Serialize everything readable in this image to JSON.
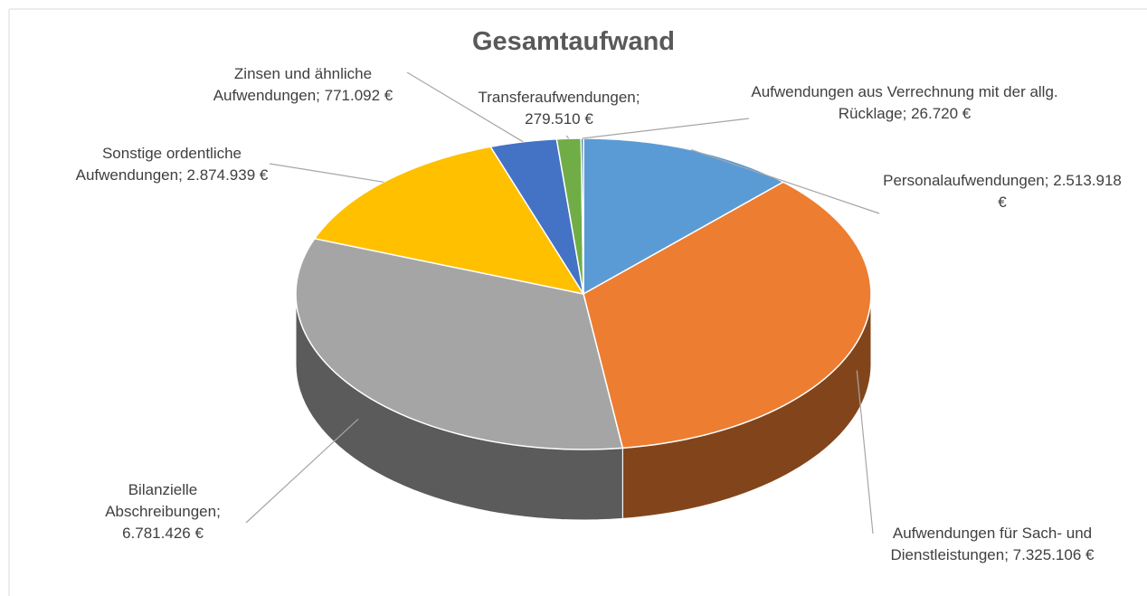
{
  "chart_data": {
    "type": "pie3d",
    "title": "Gesamtaufwand",
    "categories": [
      "Personalaufwendungen",
      "Aufwendungen für Sach- und Dienstleistungen",
      "Bilanzielle Abschreibungen",
      "Sonstige ordentliche Aufwendungen",
      "Zinsen und ähnliche Aufwendungen",
      "Transferaufwendungen",
      "Aufwendungen aus Verrechnung mit der allg. Rücklage"
    ],
    "values": [
      2513918,
      7325106,
      6781426,
      2874939,
      771092,
      279510,
      26720
    ],
    "value_labels": [
      "2.513.918 €",
      "7.325.106 €",
      "6.781.426 €",
      "2.874.939 €",
      "771.092 €",
      "279.510 €",
      "26.720 €"
    ],
    "label_separator": ";",
    "colors": [
      "#5b9bd5",
      "#ed7d31",
      "#a5a5a5",
      "#ffc000",
      "#4472c4",
      "#70ad47",
      "#255e91"
    ]
  }
}
